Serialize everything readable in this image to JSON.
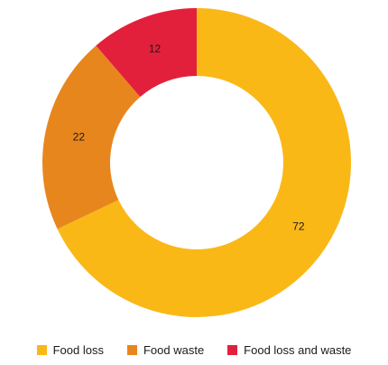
{
  "chart_data": {
    "type": "pie",
    "donut": true,
    "legend_position": "bottom",
    "series": [
      {
        "name": "Food loss",
        "value": 72,
        "label": "72",
        "color": "#FAB817"
      },
      {
        "name": "Food waste",
        "value": 22,
        "label": "22",
        "color": "#E8861E"
      },
      {
        "name": "Food loss and waste",
        "value": 12,
        "label": "12",
        "color": "#E3203C"
      }
    ]
  }
}
